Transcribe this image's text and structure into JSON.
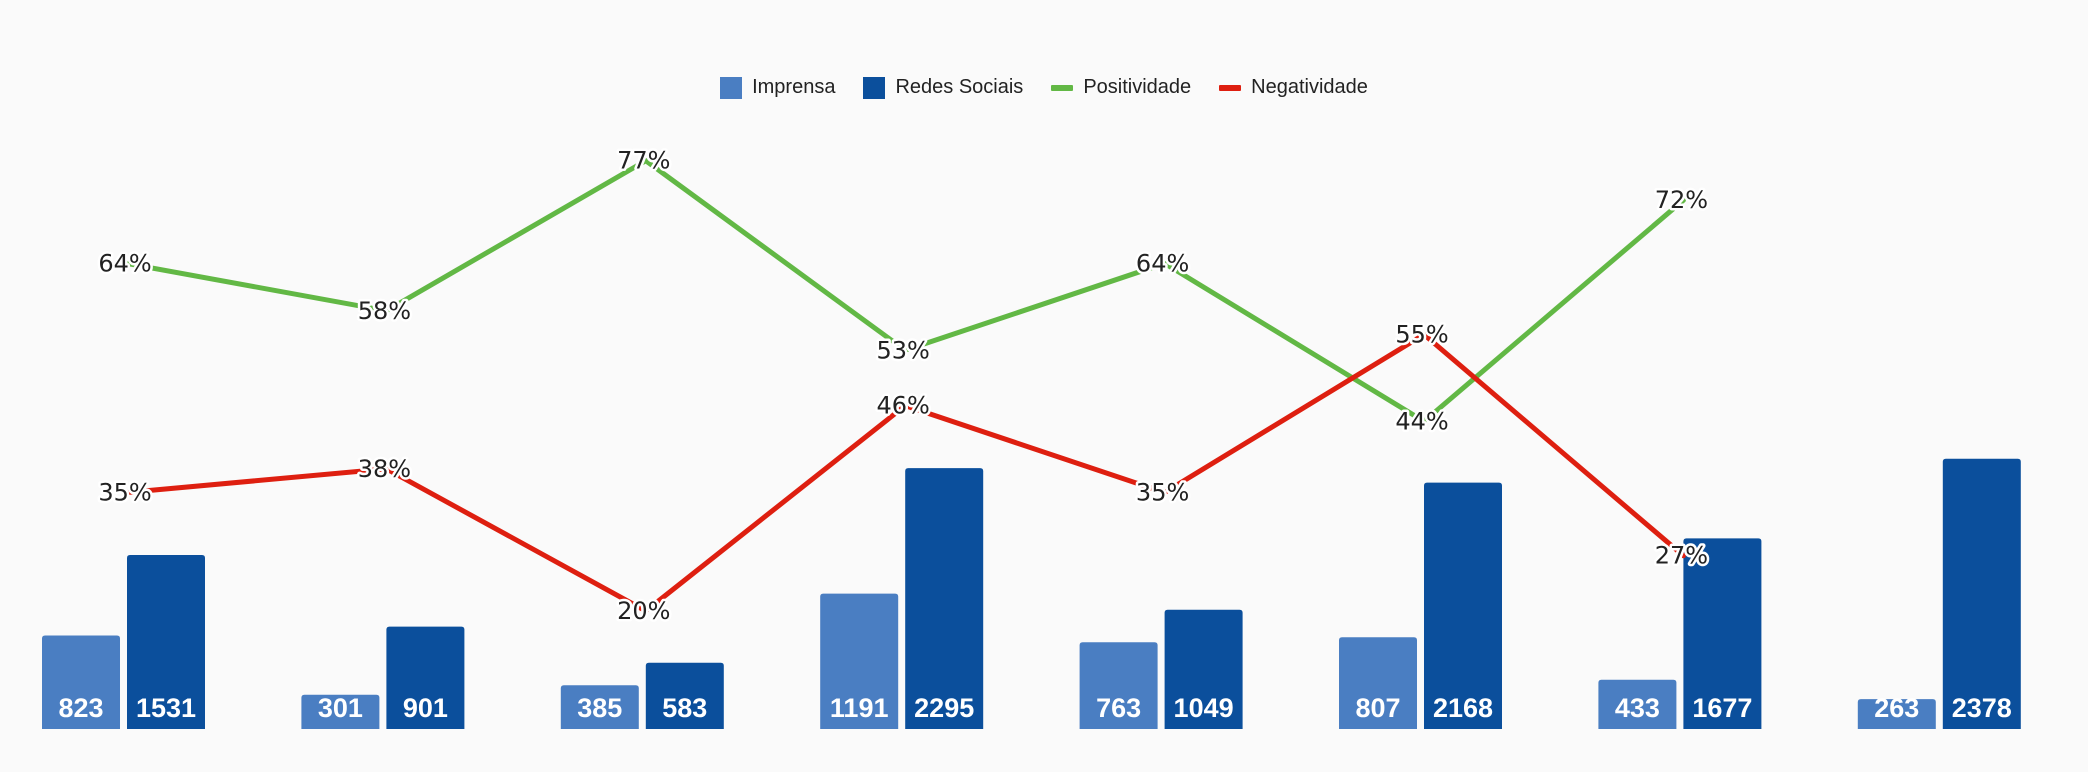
{
  "legend": {
    "items": [
      {
        "label": "Imprensa",
        "kind": "box",
        "color": "#4a7ec2"
      },
      {
        "label": "Redes Sociais",
        "kind": "box",
        "color": "#0b4f9c"
      },
      {
        "label": "Positividade",
        "kind": "line",
        "color": "#62b845"
      },
      {
        "label": "Negatividade",
        "kind": "line",
        "color": "#de1f10"
      }
    ]
  },
  "chart_data": {
    "type": "bar",
    "title": "",
    "categories_count": 8,
    "series": [
      {
        "name": "Imprensa",
        "type": "bar",
        "color": "#4a7ec2",
        "values": [
          823,
          301,
          385,
          1191,
          763,
          807,
          433,
          263
        ]
      },
      {
        "name": "Redes Sociais",
        "type": "bar",
        "color": "#0b4f9c",
        "values": [
          1531,
          901,
          583,
          2295,
          1049,
          2168,
          1677,
          2378
        ]
      },
      {
        "name": "Positividade",
        "type": "line",
        "color": "#62b845",
        "values": [
          64,
          58,
          77,
          53,
          64,
          44,
          72
        ],
        "labels": [
          "64%",
          "58%",
          "77%",
          "53%",
          "64%",
          "44%",
          "72%"
        ]
      },
      {
        "name": "Negatividade",
        "type": "line",
        "color": "#de1f10",
        "values": [
          35,
          38,
          20,
          46,
          35,
          55,
          27
        ],
        "labels": [
          "35%",
          "38%",
          "20%",
          "46%",
          "35%",
          "55%",
          "27%"
        ]
      }
    ],
    "bar_ylim": [
      0,
      4100
    ],
    "line_ylim": [
      0,
      100
    ],
    "grid": false,
    "legend_position": "top-center"
  }
}
